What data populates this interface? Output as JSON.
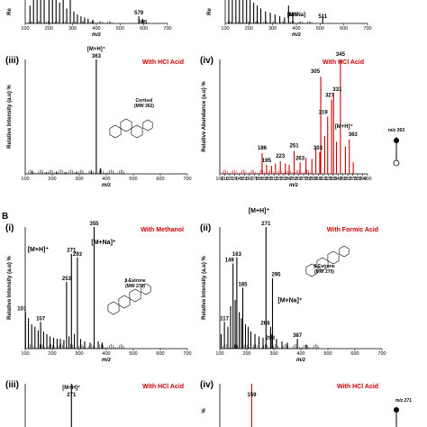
{
  "figure": {
    "section_b_label": "B"
  },
  "chart_data": [
    {
      "type": "bar",
      "id": "a_ii_top_left",
      "xlabel": "m/z",
      "ylabel": "Re",
      "xlim": [
        100,
        700
      ],
      "ylim": [
        0,
        100
      ],
      "xticks": [
        100,
        200,
        300,
        400,
        500,
        600,
        700
      ],
      "peak_labels": [
        {
          "x": 579,
          "text": "579"
        },
        {
          "x": 595,
          "text": "595"
        }
      ],
      "series": [
        {
          "color": "#000000",
          "x": [
            120,
            135,
            150,
            165,
            180,
            200,
            215,
            230,
            245,
            260,
            275,
            290,
            305,
            320,
            335,
            350,
            365,
            385,
            579,
            595
          ],
          "values": [
            30,
            60,
            90,
            50,
            100,
            45,
            70,
            55,
            35,
            65,
            25,
            40,
            20,
            15,
            12,
            10,
            8,
            6,
            12,
            8
          ]
        }
      ]
    },
    {
      "type": "bar",
      "id": "a_iv_top_right",
      "xlabel": "m/z",
      "ylabel": "Re",
      "xlim": [
        100,
        700
      ],
      "ylim": [
        0,
        100
      ],
      "xticks": [
        100,
        200,
        300,
        400,
        500,
        600,
        700
      ],
      "peak_labels": [
        {
          "x": 367,
          "text": "367"
        },
        {
          "x": 385,
          "text": "385"
        },
        {
          "x": 511,
          "text": "511"
        }
      ],
      "annotations": [
        {
          "text": "[M+Na]"
        }
      ],
      "series": [
        {
          "color": "#000000",
          "x": [
            115,
            130,
            145,
            160,
            175,
            190,
            205,
            220,
            235,
            250,
            270,
            290,
            310,
            330,
            350,
            367,
            385,
            511
          ],
          "values": [
            40,
            80,
            55,
            100,
            60,
            45,
            70,
            35,
            30,
            25,
            20,
            18,
            15,
            12,
            10,
            30,
            18,
            12
          ]
        }
      ]
    },
    {
      "type": "bar",
      "id": "a_iii",
      "panel_label": "(iii)",
      "condition": "With HCl Acid",
      "xlabel": "m/z",
      "ylabel": "Relative Intensity (a.u) %",
      "xlim": [
        100,
        700
      ],
      "ylim": [
        0,
        100
      ],
      "xticks": [
        100,
        200,
        300,
        400,
        500,
        600,
        700
      ],
      "peak_labels": [
        {
          "x": 363,
          "text": "[M+H]⁺"
        },
        {
          "x": 363,
          "text": "363"
        }
      ],
      "structure_name": "Cortisol",
      "structure_mw": "(MW 362)",
      "series": [
        {
          "color": "#000000",
          "x": [
            125,
            178,
            215,
            250,
            290,
            345,
            363,
            378
          ],
          "values": [
            2,
            1.5,
            2,
            1.5,
            2,
            2,
            100,
            5
          ]
        }
      ]
    },
    {
      "type": "bar",
      "id": "a_iv",
      "panel_label": "(iv)",
      "condition": "With HCl Acid",
      "xlabel": "m/z",
      "ylabel": "Relative Abundance (a.u) %",
      "xlim": [
        100,
        400
      ],
      "ylim": [
        0,
        100
      ],
      "xticks": [
        100,
        110,
        120,
        130,
        140,
        150,
        160,
        170,
        180,
        190,
        200,
        210,
        220,
        230,
        240,
        250,
        260,
        270,
        280,
        290,
        300,
        310,
        320,
        330,
        340,
        350,
        360,
        370,
        380,
        390,
        400
      ],
      "peak_labels": [
        {
          "x": 186,
          "text": "186"
        },
        {
          "x": 195,
          "text": "195"
        },
        {
          "x": 223,
          "text": "223"
        },
        {
          "x": 251,
          "text": "251"
        },
        {
          "x": 263,
          "text": "263"
        },
        {
          "x": 303,
          "text": "303"
        },
        {
          "x": 305,
          "text": "305"
        },
        {
          "x": 319,
          "text": "319"
        },
        {
          "x": 327,
          "text": "327"
        },
        {
          "x": 331,
          "text": "331"
        },
        {
          "x": 345,
          "text": "345"
        },
        {
          "x": 363,
          "text": "363"
        }
      ],
      "annotations": [
        {
          "text": "[M+H]⁺"
        },
        {
          "text": "m/z 363"
        }
      ],
      "series": [
        {
          "color": "#cc0000",
          "x": [
            186,
            195,
            205,
            213,
            223,
            233,
            241,
            251,
            263,
            275,
            287,
            295,
            303,
            305,
            313,
            319,
            327,
            331,
            337,
            345,
            355,
            363,
            371
          ],
          "values": [
            18,
            8,
            7,
            9,
            11,
            9,
            8,
            20,
            10,
            14,
            13,
            22,
            19,
            85,
            33,
            50,
            65,
            70,
            28,
            100,
            24,
            30,
            10
          ]
        }
      ]
    },
    {
      "type": "bar",
      "id": "b_i",
      "panel_label": "(i)",
      "condition": "With Methanol",
      "xlabel": "m/z",
      "ylabel": "Relative Intensity (a.u) %",
      "xlim": [
        100,
        700
      ],
      "ylim": [
        0,
        100
      ],
      "xticks": [
        100,
        200,
        300,
        400,
        500,
        600,
        700
      ],
      "peak_labels": [
        {
          "x": 101,
          "text": "101"
        },
        {
          "x": 157,
          "text": "157"
        },
        {
          "x": 253,
          "text": "253"
        },
        {
          "x": 271,
          "text": "271"
        },
        {
          "x": 293,
          "text": "293"
        },
        {
          "x": 355,
          "text": "355"
        }
      ],
      "annotations": [
        {
          "text": "[M+H]⁺"
        },
        {
          "text": "[M+Na]⁺"
        }
      ],
      "structure_name": "β-Estrone",
      "structure_mw": "(MW 270)",
      "series": [
        {
          "color": "#000000",
          "x": [
            101,
            112,
            124,
            136,
            148,
            157,
            168,
            180,
            192,
            205,
            218,
            230,
            243,
            253,
            262,
            271,
            282,
            293,
            305,
            320,
            340,
            355,
            370,
            385
          ],
          "values": [
            30,
            25,
            20,
            18,
            15,
            22,
            14,
            12,
            10,
            9,
            8,
            8,
            7,
            55,
            10,
            78,
            12,
            75,
            8,
            6,
            5,
            100,
            6,
            5
          ]
        }
      ]
    },
    {
      "type": "bar",
      "id": "b_ii",
      "panel_label": "(ii)",
      "condition": "With Formic Acid",
      "xlabel": "m/z",
      "ylabel": "Relative Intensity (a.u) %",
      "xlim": [
        100,
        700
      ],
      "ylim": [
        0,
        100
      ],
      "xticks": [
        100,
        200,
        300,
        400,
        500,
        600,
        700
      ],
      "peak_labels": [
        {
          "x": 117,
          "text": "117"
        },
        {
          "x": 149,
          "text": "149"
        },
        {
          "x": 163,
          "text": "163"
        },
        {
          "x": 185,
          "text": "185"
        },
        {
          "x": 271,
          "text": "271"
        },
        {
          "x": 288,
          "text": "288"
        },
        {
          "x": 293,
          "text": "293"
        },
        {
          "x": 295,
          "text": "295"
        },
        {
          "x": 387,
          "text": "387"
        }
      ],
      "annotations": [
        {
          "text": "[M+H]⁺"
        },
        {
          "text": "[M+Na]⁺"
        }
      ],
      "structure_name": "β-Estrone",
      "structure_mw": "(MW 270)",
      "series": [
        {
          "color": "#000000",
          "x": [
            105,
            117,
            130,
            140,
            149,
            157,
            163,
            172,
            180,
            185,
            195,
            205,
            215,
            230,
            245,
            260,
            271,
            288,
            293,
            295,
            310,
            330,
            350,
            387,
            420
          ],
          "values": [
            12,
            22,
            18,
            35,
            70,
            40,
            75,
            30,
            25,
            50,
            20,
            18,
            14,
            12,
            10,
            9,
            100,
            18,
            12,
            58,
            8,
            6,
            5,
            8,
            3
          ]
        }
      ]
    },
    {
      "type": "bar",
      "id": "b_iii",
      "panel_label": "(iii)",
      "condition": "With HCl Acid",
      "xlabel": "m/z",
      "ylabel": "",
      "xlim": [
        100,
        700
      ],
      "ylim": [
        0,
        100
      ],
      "peak_labels": [
        {
          "x": 271,
          "text": "[M+H]⁺"
        },
        {
          "x": 271,
          "text": "271"
        }
      ],
      "series": [
        {
          "color": "#000000",
          "x": [
            271
          ],
          "values": [
            100
          ]
        }
      ]
    },
    {
      "type": "bar",
      "id": "b_iv",
      "panel_label": "(iv)",
      "condition": "With HCl Acid",
      "xlabel": "m/z",
      "ylabel": "%",
      "xlim": [
        100,
        400
      ],
      "ylim": [
        0,
        100
      ],
      "peak_labels": [
        {
          "x": 159,
          "text": "159"
        }
      ],
      "annotations": [
        {
          "text": "m/z 271"
        }
      ],
      "series": [
        {
          "color": "#cc0000",
          "x": [
            159
          ],
          "values": [
            100
          ]
        }
      ]
    }
  ]
}
